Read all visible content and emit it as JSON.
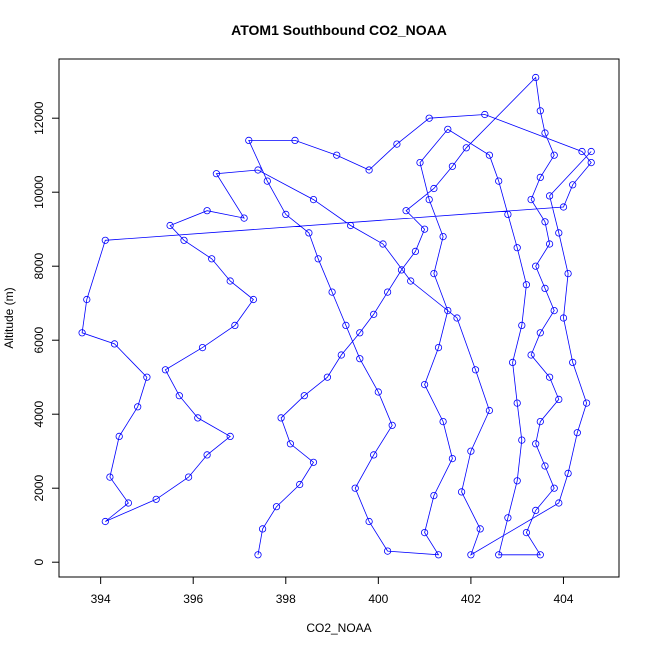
{
  "chart_data": {
    "type": "scatter",
    "title": "ATOM1 Southbound CO2_NOAA",
    "xlabel": "CO2_NOAA",
    "ylabel": "Altitude (m)",
    "xlim": [
      393.1,
      405.2
    ],
    "ylim": [
      -400,
      13600
    ],
    "x_ticks": [
      "394",
      "396",
      "398",
      "400",
      "402",
      "404"
    ],
    "y_ticks": [
      "0",
      "2000",
      "4000",
      "6000",
      "8000",
      "10000",
      "12000"
    ],
    "grid": false,
    "legend": "none",
    "series": [
      {
        "marker": "open-circle",
        "connected": true,
        "color": "#0000ff",
        "points": [
          [
            397.4,
            200
          ],
          [
            397.5,
            900
          ],
          [
            397.8,
            1500
          ],
          [
            398.3,
            2100
          ],
          [
            398.6,
            2700
          ],
          [
            398.1,
            3200
          ],
          [
            397.9,
            3900
          ],
          [
            398.4,
            4500
          ],
          [
            398.9,
            5000
          ],
          [
            399.2,
            5600
          ],
          [
            399.6,
            6200
          ],
          [
            399.9,
            6700
          ],
          [
            400.2,
            7300
          ],
          [
            400.5,
            7900
          ],
          [
            400.8,
            8400
          ],
          [
            401.0,
            9000
          ],
          [
            400.6,
            9500
          ],
          [
            401.2,
            10100
          ],
          [
            401.6,
            10700
          ],
          [
            401.9,
            11200
          ],
          [
            403.4,
            13100
          ],
          [
            403.5,
            12200
          ],
          [
            403.6,
            11600
          ],
          [
            403.8,
            11000
          ],
          [
            403.5,
            10400
          ],
          [
            403.3,
            9800
          ],
          [
            403.6,
            9200
          ],
          [
            403.7,
            8600
          ],
          [
            403.4,
            8000
          ],
          [
            403.6,
            7400
          ],
          [
            403.8,
            6800
          ],
          [
            403.5,
            6200
          ],
          [
            403.3,
            5600
          ],
          [
            403.7,
            5000
          ],
          [
            403.9,
            4400
          ],
          [
            403.5,
            3800
          ],
          [
            403.4,
            3200
          ],
          [
            403.6,
            2600
          ],
          [
            403.8,
            2000
          ],
          [
            403.4,
            1400
          ],
          [
            403.2,
            800
          ],
          [
            403.5,
            200
          ],
          [
            402.6,
            200
          ],
          [
            402.8,
            1200
          ],
          [
            403.0,
            2200
          ],
          [
            403.1,
            3300
          ],
          [
            403.0,
            4300
          ],
          [
            402.9,
            5400
          ],
          [
            403.1,
            6400
          ],
          [
            403.2,
            7500
          ],
          [
            403.0,
            8500
          ],
          [
            402.8,
            9400
          ],
          [
            402.6,
            10300
          ],
          [
            402.4,
            11000
          ],
          [
            401.5,
            11700
          ],
          [
            400.9,
            10800
          ],
          [
            401.1,
            9800
          ],
          [
            401.4,
            8800
          ],
          [
            401.2,
            7800
          ],
          [
            401.5,
            6800
          ],
          [
            401.3,
            5800
          ],
          [
            401.0,
            4800
          ],
          [
            401.4,
            3800
          ],
          [
            401.6,
            2800
          ],
          [
            401.2,
            1800
          ],
          [
            401.0,
            800
          ],
          [
            401.3,
            200
          ],
          [
            400.2,
            300
          ],
          [
            399.8,
            1100
          ],
          [
            399.5,
            2000
          ],
          [
            399.9,
            2900
          ],
          [
            400.3,
            3700
          ],
          [
            400.0,
            4600
          ],
          [
            399.6,
            5500
          ],
          [
            399.3,
            6400
          ],
          [
            399.0,
            7300
          ],
          [
            398.7,
            8200
          ],
          [
            398.5,
            8900
          ],
          [
            398.0,
            9400
          ],
          [
            397.6,
            10300
          ],
          [
            397.2,
            11400
          ],
          [
            398.2,
            11400
          ],
          [
            399.1,
            11000
          ],
          [
            399.8,
            10600
          ],
          [
            400.4,
            11300
          ],
          [
            401.1,
            12000
          ],
          [
            402.3,
            12100
          ],
          [
            404.4,
            11100
          ],
          [
            404.6,
            10800
          ],
          [
            404.2,
            10200
          ],
          [
            404.0,
            9600
          ],
          [
            394.1,
            8700
          ],
          [
            393.7,
            7100
          ],
          [
            393.6,
            6200
          ],
          [
            394.3,
            5900
          ],
          [
            395.0,
            5000
          ],
          [
            394.8,
            4200
          ],
          [
            394.4,
            3400
          ],
          [
            394.2,
            2300
          ],
          [
            394.6,
            1600
          ],
          [
            394.1,
            1100
          ],
          [
            395.2,
            1700
          ],
          [
            395.9,
            2300
          ],
          [
            396.3,
            2900
          ],
          [
            396.8,
            3400
          ],
          [
            396.1,
            3900
          ],
          [
            395.7,
            4500
          ],
          [
            395.4,
            5200
          ],
          [
            396.2,
            5800
          ],
          [
            396.9,
            6400
          ],
          [
            397.3,
            7100
          ],
          [
            396.8,
            7600
          ],
          [
            396.4,
            8200
          ],
          [
            395.8,
            8700
          ],
          [
            395.5,
            9100
          ],
          [
            396.3,
            9500
          ],
          [
            397.1,
            9300
          ],
          [
            396.5,
            10500
          ],
          [
            397.4,
            10600
          ],
          [
            398.6,
            9800
          ],
          [
            399.4,
            9100
          ],
          [
            400.1,
            8600
          ],
          [
            400.7,
            7600
          ],
          [
            401.7,
            6600
          ],
          [
            402.1,
            5200
          ],
          [
            402.4,
            4100
          ],
          [
            402.0,
            3000
          ],
          [
            401.8,
            1900
          ],
          [
            402.2,
            900
          ],
          [
            402.0,
            200
          ],
          [
            403.9,
            1600
          ],
          [
            404.1,
            2400
          ],
          [
            404.3,
            3500
          ],
          [
            404.5,
            4300
          ],
          [
            404.2,
            5400
          ],
          [
            404.0,
            6600
          ],
          [
            404.1,
            7800
          ],
          [
            403.9,
            8900
          ],
          [
            403.7,
            9900
          ],
          [
            404.6,
            11100
          ]
        ]
      }
    ]
  }
}
